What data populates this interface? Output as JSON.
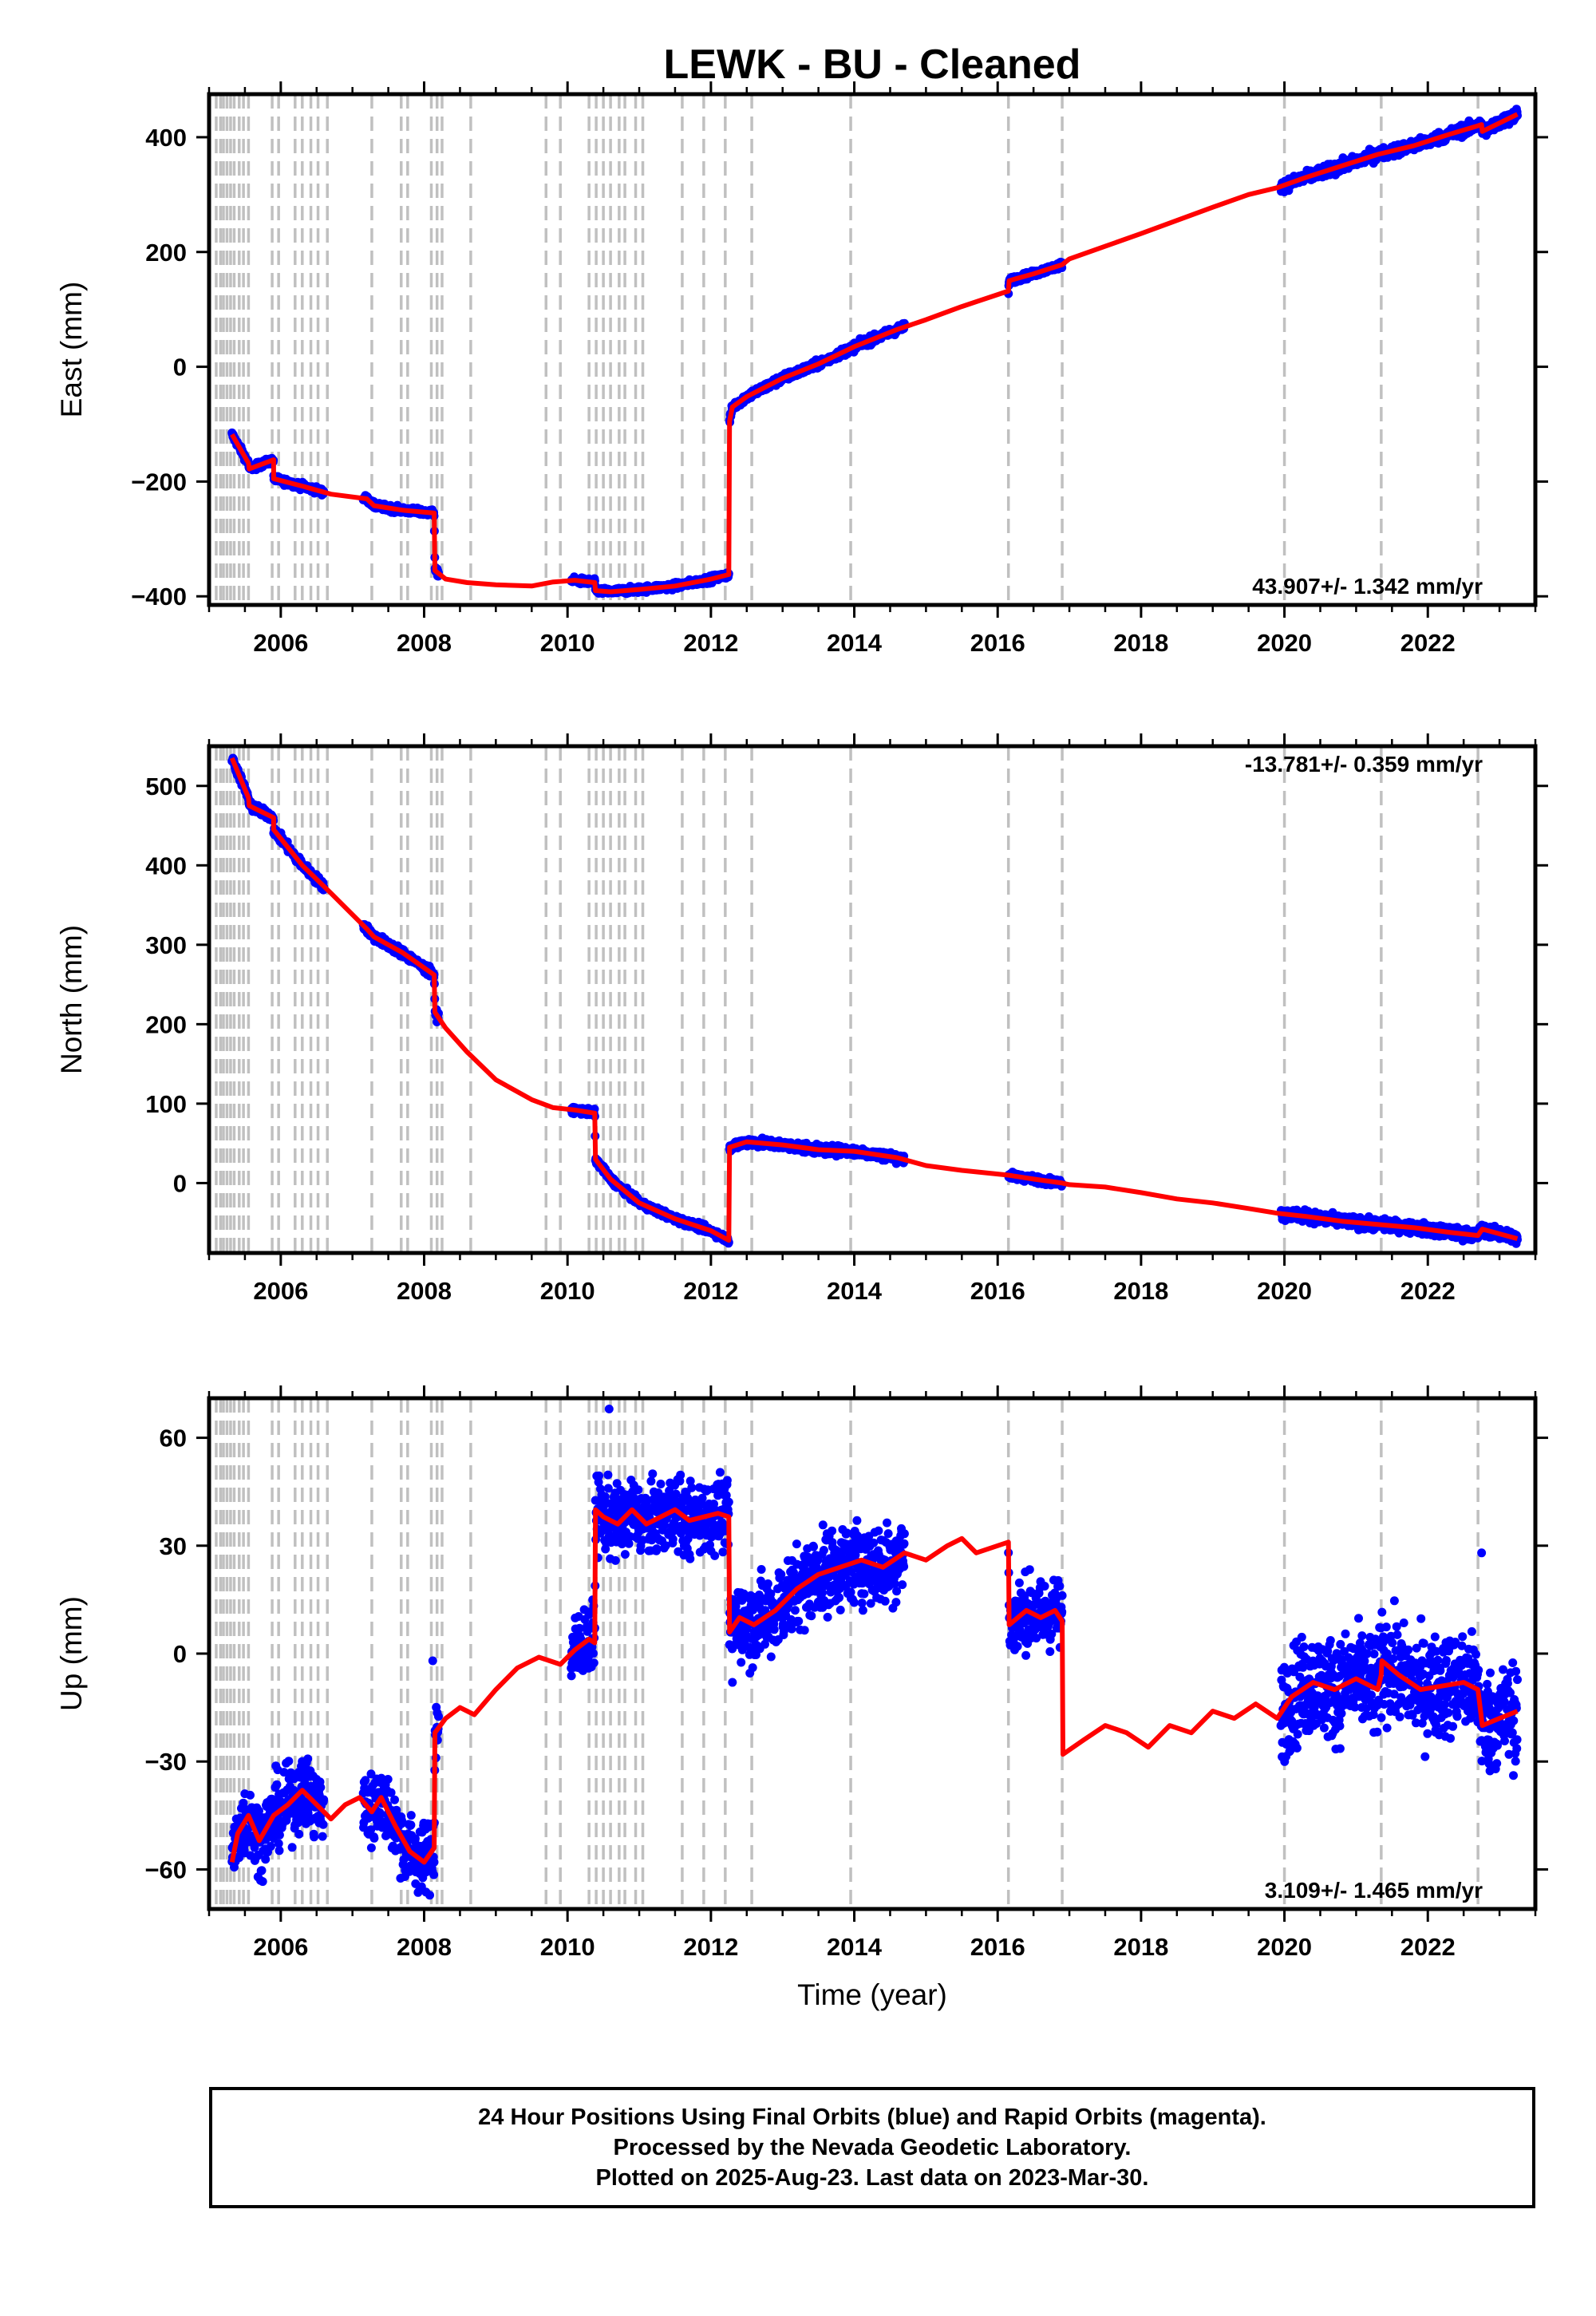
{
  "title": "LEWK  - BU - Cleaned",
  "x_axis_label": "Time (year)",
  "footer": {
    "line1": "24 Hour Positions Using Final Orbits (blue) and Rapid Orbits (magenta).",
    "line2": "Processed by the Nevada Geodetic Laboratory.",
    "line3": "Plotted on 2025-Aug-23. Last data on 2023-Mar-30."
  },
  "colors": {
    "observations": "#0000ff",
    "model": "#ff0000",
    "offsets": "#c0c0c0"
  },
  "chart_data": [
    {
      "type": "scatter",
      "component": "East",
      "ylabel": "East (mm)",
      "rate_text": "43.907+/- 1.342 mm/yr",
      "rate_position": "bottom-right",
      "xlim": [
        2005.0,
        2023.5
      ],
      "ylim": [
        -415,
        475
      ],
      "xticks": [
        2006,
        2008,
        2010,
        2012,
        2014,
        2016,
        2018,
        2020,
        2022
      ],
      "xtick_labels": [
        "2006",
        "2008",
        "2010",
        "2012",
        "2014",
        "2016",
        "2018",
        "2020",
        "2022"
      ],
      "yticks": [
        -400,
        -200,
        0,
        200,
        400
      ],
      "ytick_labels": [
        "−400",
        "−200",
        "0",
        "200",
        "400"
      ],
      "model": {
        "name": "",
        "x": [
          2005.32,
          2005.55,
          2005.56,
          2005.9,
          2005.9,
          2006.3,
          2006.7,
          2007.2,
          2007.3,
          2007.7,
          2008.14,
          2008.15,
          2008.3,
          2008.6,
          2009.0,
          2009.5,
          2009.8,
          2010.1,
          2010.38,
          2010.39,
          2010.6,
          2011.0,
          2011.5,
          2012.0,
          2012.25,
          2012.26,
          2012.3,
          2012.5,
          2013.0,
          2013.5,
          2014.0,
          2014.6,
          2015.0,
          2015.5,
          2016.1,
          2016.15,
          2016.16,
          2016.5,
          2016.9,
          2017.0,
          2017.5,
          2018.0,
          2018.5,
          2019.0,
          2019.5,
          2019.9,
          2020.3,
          2020.8,
          2021.3,
          2021.8,
          2022.3,
          2022.7,
          2022.75,
          2022.76,
          2023.25
        ],
        "y": [
          -118,
          -168,
          -178,
          -162,
          -195,
          -208,
          -222,
          -230,
          -242,
          -250,
          -255,
          -355,
          -370,
          -376,
          -380,
          -382,
          -375,
          -372,
          -376,
          -390,
          -392,
          -388,
          -382,
          -370,
          -362,
          -95,
          -70,
          -52,
          -20,
          5,
          35,
          65,
          82,
          105,
          130,
          132,
          150,
          162,
          178,
          188,
          210,
          232,
          255,
          278,
          300,
          312,
          330,
          350,
          370,
          385,
          405,
          420,
          422,
          410,
          440
        ]
      },
      "observations": {
        "name": "",
        "segments": [
          {
            "x_start": 2005.32,
            "x_end": 2006.6,
            "noise": 4
          },
          {
            "x_start": 2007.15,
            "x_end": 2008.2,
            "noise": 4
          },
          {
            "x_start": 2010.05,
            "x_end": 2012.25,
            "noise": 4
          },
          {
            "x_start": 2012.26,
            "x_end": 2014.7,
            "noise": 5
          },
          {
            "x_start": 2016.15,
            "x_end": 2016.9,
            "noise": 4
          },
          {
            "x_start": 2019.95,
            "x_end": 2023.25,
            "noise": 7
          }
        ]
      },
      "offsets": [
        2005.1,
        2005.16,
        2005.2,
        2005.25,
        2005.3,
        2005.35,
        2005.42,
        2005.48,
        2005.55,
        2005.88,
        2005.97,
        2006.2,
        2006.3,
        2006.42,
        2006.52,
        2006.65,
        2007.27,
        2007.68,
        2007.77,
        2008.1,
        2008.18,
        2008.25,
        2008.65,
        2009.7,
        2009.9,
        2010.3,
        2010.4,
        2010.5,
        2010.6,
        2010.72,
        2010.8,
        2010.95,
        2011.05,
        2011.6,
        2011.9,
        2012.2,
        2012.57,
        2013.95,
        2016.15,
        2016.9,
        2020.0,
        2021.35,
        2022.7
      ]
    },
    {
      "type": "scatter",
      "component": "North",
      "ylabel": "North (mm)",
      "rate_text": "-13.781+/- 0.359 mm/yr",
      "rate_position": "top-right",
      "xlim": [
        2005.0,
        2023.5
      ],
      "ylim": [
        -88,
        550
      ],
      "xticks": [
        2006,
        2008,
        2010,
        2012,
        2014,
        2016,
        2018,
        2020,
        2022
      ],
      "xtick_labels": [
        "2006",
        "2008",
        "2010",
        "2012",
        "2014",
        "2016",
        "2018",
        "2020",
        "2022"
      ],
      "yticks": [
        0,
        100,
        200,
        300,
        400,
        500
      ],
      "ytick_labels": [
        "0",
        "100",
        "200",
        "300",
        "400",
        "500"
      ],
      "model": {
        "name": "",
        "x": [
          2005.32,
          2005.55,
          2005.56,
          2005.9,
          2005.9,
          2006.3,
          2006.7,
          2007.2,
          2007.3,
          2007.7,
          2008.14,
          2008.15,
          2008.3,
          2008.6,
          2009.0,
          2009.5,
          2009.8,
          2010.1,
          2010.38,
          2010.39,
          2010.6,
          2011.0,
          2011.5,
          2012.0,
          2012.25,
          2012.26,
          2012.5,
          2013.0,
          2013.5,
          2014.0,
          2014.6,
          2015.0,
          2015.5,
          2016.15,
          2016.5,
          2016.9,
          2017.0,
          2017.5,
          2018.0,
          2018.5,
          2019.0,
          2019.5,
          2019.9,
          2020.3,
          2020.8,
          2021.3,
          2021.8,
          2022.3,
          2022.7,
          2022.76,
          2023.25
        ],
        "y": [
          535,
          485,
          475,
          460,
          445,
          400,
          365,
          320,
          310,
          290,
          262,
          215,
          195,
          165,
          130,
          105,
          95,
          92,
          88,
          30,
          5,
          -25,
          -45,
          -60,
          -72,
          45,
          52,
          48,
          42,
          40,
          32,
          22,
          16,
          10,
          5,
          0,
          -2,
          -5,
          -12,
          -20,
          -25,
          -32,
          -38,
          -42,
          -48,
          -52,
          -56,
          -62,
          -66,
          -58,
          -70
        ]
      },
      "observations": {
        "name": "",
        "segments": [
          {
            "x_start": 2005.32,
            "x_end": 2006.6,
            "noise": 4
          },
          {
            "x_start": 2007.15,
            "x_end": 2008.2,
            "noise": 4
          },
          {
            "x_start": 2010.05,
            "x_end": 2012.25,
            "noise": 3
          },
          {
            "x_start": 2012.26,
            "x_end": 2014.7,
            "noise": 4
          },
          {
            "x_start": 2016.15,
            "x_end": 2016.9,
            "noise": 3
          },
          {
            "x_start": 2019.95,
            "x_end": 2023.25,
            "noise": 5
          }
        ]
      },
      "offsets": [
        2005.1,
        2005.16,
        2005.2,
        2005.25,
        2005.3,
        2005.35,
        2005.42,
        2005.48,
        2005.55,
        2005.88,
        2005.97,
        2006.2,
        2006.3,
        2006.42,
        2006.52,
        2006.65,
        2007.27,
        2007.68,
        2007.77,
        2008.1,
        2008.18,
        2008.25,
        2008.65,
        2009.7,
        2009.9,
        2010.3,
        2010.4,
        2010.5,
        2010.6,
        2010.72,
        2010.8,
        2010.95,
        2011.05,
        2011.6,
        2011.9,
        2012.2,
        2012.57,
        2013.95,
        2016.15,
        2016.9,
        2020.0,
        2021.35,
        2022.7
      ]
    },
    {
      "type": "scatter",
      "component": "Up",
      "ylabel": "Up (mm)",
      "rate_text": "3.109+/- 1.465 mm/yr",
      "rate_position": "bottom-right",
      "xlim": [
        2005.0,
        2023.5
      ],
      "ylim": [
        -71,
        71
      ],
      "xticks": [
        2006,
        2008,
        2010,
        2012,
        2014,
        2016,
        2018,
        2020,
        2022
      ],
      "xtick_labels": [
        "2006",
        "2008",
        "2010",
        "2012",
        "2014",
        "2016",
        "2018",
        "2020",
        "2022"
      ],
      "yticks": [
        -60,
        -30,
        0,
        30,
        60
      ],
      "ytick_labels": [
        "−60",
        "−30",
        "0",
        "30",
        "60"
      ],
      "model": {
        "name": "",
        "x": [
          2005.32,
          2005.4,
          2005.55,
          2005.7,
          2005.9,
          2006.1,
          2006.3,
          2006.5,
          2006.7,
          2006.9,
          2007.1,
          2007.27,
          2007.4,
          2007.6,
          2007.8,
          2008.0,
          2008.14,
          2008.15,
          2008.3,
          2008.5,
          2008.7,
          2009.0,
          2009.3,
          2009.6,
          2009.9,
          2010.1,
          2010.3,
          2010.38,
          2010.39,
          2010.5,
          2010.7,
          2010.9,
          2011.1,
          2011.3,
          2011.5,
          2011.7,
          2011.9,
          2012.1,
          2012.25,
          2012.26,
          2012.4,
          2012.6,
          2012.9,
          2013.2,
          2013.5,
          2013.8,
          2014.1,
          2014.4,
          2014.7,
          2015.0,
          2015.3,
          2015.5,
          2015.7,
          2016.0,
          2016.15,
          2016.16,
          2016.4,
          2016.6,
          2016.8,
          2016.9,
          2016.91,
          2017.2,
          2017.5,
          2017.8,
          2018.1,
          2018.4,
          2018.7,
          2019.0,
          2019.3,
          2019.6,
          2019.9,
          2020.1,
          2020.4,
          2020.7,
          2021.0,
          2021.3,
          2021.35,
          2021.36,
          2021.6,
          2021.9,
          2022.2,
          2022.5,
          2022.7,
          2022.76,
          2023.0,
          2023.25
        ],
        "y": [
          -58,
          -50,
          -45,
          -52,
          -45,
          -42,
          -38,
          -42,
          -46,
          -42,
          -40,
          -44,
          -40,
          -48,
          -55,
          -58,
          -54,
          -22,
          -18,
          -15,
          -17,
          -10,
          -4,
          -1,
          -3,
          1,
          4,
          3,
          40,
          38,
          36,
          40,
          36,
          38,
          40,
          37,
          38,
          39,
          38,
          6,
          10,
          8,
          12,
          18,
          22,
          24,
          26,
          24,
          28,
          26,
          30,
          32,
          28,
          30,
          31,
          8,
          12,
          10,
          12,
          9,
          -28,
          -24,
          -20,
          -22,
          -26,
          -20,
          -22,
          -16,
          -18,
          -14,
          -18,
          -12,
          -8,
          -10,
          -7,
          -10,
          -6,
          -2,
          -6,
          -10,
          -9,
          -8,
          -10,
          -20,
          -18,
          -16
        ]
      },
      "observations": {
        "name": "",
        "segments": [
          {
            "x_start": 2005.32,
            "x_end": 2006.6,
            "noise": 7
          },
          {
            "x_start": 2007.15,
            "x_end": 2008.2,
            "noise": 7
          },
          {
            "x_start": 2010.05,
            "x_end": 2012.25,
            "noise": 7
          },
          {
            "x_start": 2012.26,
            "x_end": 2014.7,
            "noise": 8
          },
          {
            "x_start": 2016.15,
            "x_end": 2016.9,
            "noise": 7
          },
          {
            "x_start": 2019.95,
            "x_end": 2023.25,
            "noise": 10
          }
        ],
        "outliers": [
          {
            "x": 2010.58,
            "y": 68
          },
          {
            "x": 2008.12,
            "y": -2
          },
          {
            "x": 2012.3,
            "y": -8
          },
          {
            "x": 2022.75,
            "y": 28
          }
        ]
      },
      "offsets": [
        2005.1,
        2005.16,
        2005.2,
        2005.25,
        2005.3,
        2005.35,
        2005.42,
        2005.48,
        2005.55,
        2005.88,
        2005.97,
        2006.2,
        2006.3,
        2006.42,
        2006.52,
        2006.65,
        2007.27,
        2007.68,
        2007.77,
        2008.1,
        2008.18,
        2008.25,
        2008.65,
        2009.7,
        2009.9,
        2010.3,
        2010.4,
        2010.5,
        2010.6,
        2010.72,
        2010.8,
        2010.95,
        2011.05,
        2011.6,
        2011.9,
        2012.2,
        2012.57,
        2013.95,
        2016.15,
        2016.9,
        2020.0,
        2021.35,
        2022.7
      ]
    }
  ]
}
